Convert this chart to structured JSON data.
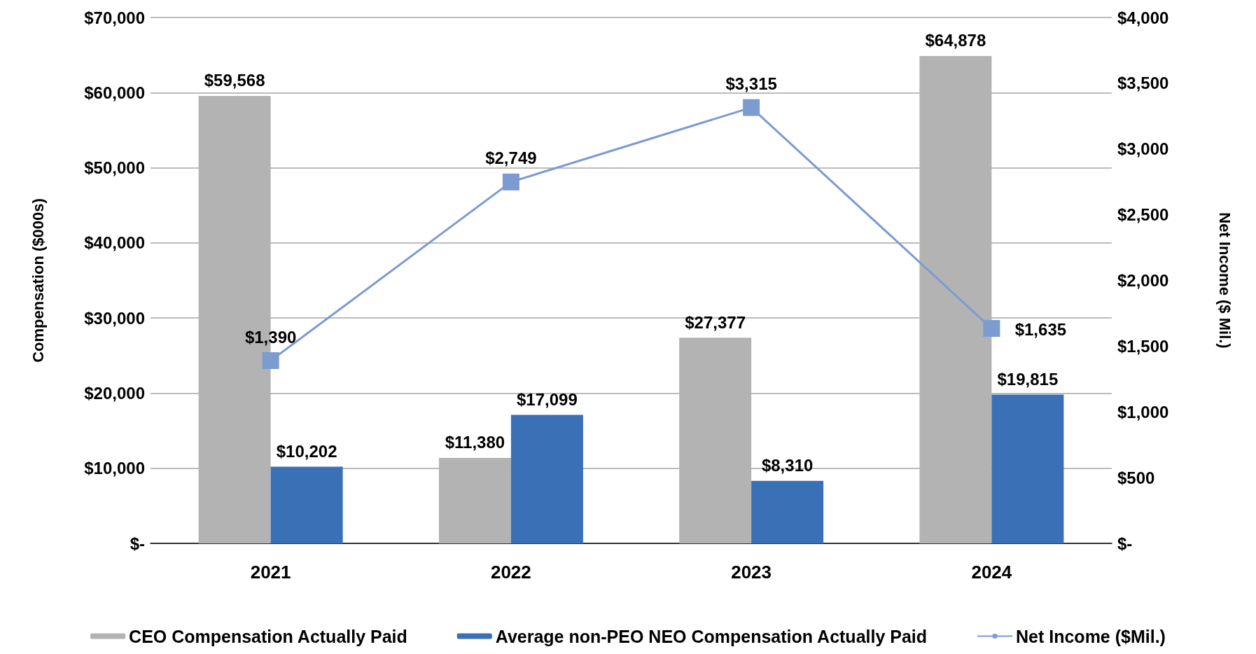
{
  "chart_data": {
    "type": "bar",
    "categories": [
      "2021",
      "2022",
      "2023",
      "2024"
    ],
    "ylabel": "Compensation ($000s)",
    "y2label": "Net Income ($ Mil.)",
    "ylim": [
      0,
      70000
    ],
    "yticks": [
      {
        "value": 0,
        "label": "$-"
      },
      {
        "value": 10000,
        "label": "$10,000"
      },
      {
        "value": 20000,
        "label": "$20,000"
      },
      {
        "value": 30000,
        "label": "$30,000"
      },
      {
        "value": 40000,
        "label": "$40,000"
      },
      {
        "value": 50000,
        "label": "$50,000"
      },
      {
        "value": 60000,
        "label": "$60,000"
      },
      {
        "value": 70000,
        "label": "$70,000"
      }
    ],
    "y2lim": [
      0,
      4000
    ],
    "y2ticks": [
      {
        "value": 0,
        "label": "$-"
      },
      {
        "value": 500,
        "label": "$500"
      },
      {
        "value": 1000,
        "label": "$1,000"
      },
      {
        "value": 1500,
        "label": "$1,500"
      },
      {
        "value": 2000,
        "label": "$2,000"
      },
      {
        "value": 2500,
        "label": "$2,500"
      },
      {
        "value": 3000,
        "label": "$3,000"
      },
      {
        "value": 3500,
        "label": "$3,500"
      },
      {
        "value": 4000,
        "label": "$4,000"
      }
    ],
    "grid": "y",
    "legend": "bottom",
    "series": [
      {
        "name": "CEO Compensation Actually Paid",
        "color": "#b3b3b3",
        "values": [
          59568,
          11380,
          27377,
          64878
        ],
        "value_labels": [
          "$59,568",
          "$11,380",
          "$27,377",
          "$64,878"
        ]
      },
      {
        "name": "Average non-PEO NEO Compensation Actually Paid",
        "color": "#3a70b5",
        "values": [
          10202,
          17099,
          8310,
          19815
        ],
        "value_labels": [
          "$10,202",
          "$17,099",
          "$8,310",
          "$19,815"
        ]
      },
      {
        "name": "Net Income ($Mil.)",
        "type": "line",
        "axis": "y2",
        "color": "#7b9bd1",
        "marker": "square",
        "values": [
          1390,
          2749,
          3315,
          1635
        ],
        "value_labels": [
          "$1,390",
          "$2,749",
          "$3,315",
          "$1,635"
        ]
      }
    ]
  }
}
